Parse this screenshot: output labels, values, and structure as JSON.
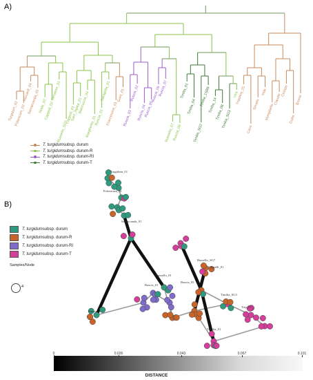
{
  "panels": {
    "a_label": "A)",
    "b_label": "B)"
  },
  "colors": {
    "durum": "#c98a5b",
    "durum_R": "#8bc34a",
    "durum_RI": "#9c5bc9",
    "durum_T": "#3c7a34",
    "node_durum": "#2f9a7d",
    "node_R": "#c8642a",
    "node_RI": "#7f6cc9",
    "node_T": "#d43f9a"
  },
  "legend_a": [
    {
      "italic": "T. turgidum",
      "rest": " subsp. durum"
    },
    {
      "italic": "T. turgidum",
      "rest": " subsp. durum-R"
    },
    {
      "italic": "T. turgidum",
      "rest": " subsp. durum-RI"
    },
    {
      "italic": "T. turgidum",
      "rest": " subsp. durum-T"
    }
  ],
  "legend_b": [
    {
      "italic": "T. turgidum",
      "rest": " subsp. durum"
    },
    {
      "italic": "T. turgidum",
      "rest": " subsp. durum-R"
    },
    {
      "italic": "T. turgidum",
      "rest": " subsp. durum-RI"
    },
    {
      "italic": "T. turgidum",
      "rest": " subsp. durum-T"
    }
  ],
  "samples": {
    "title": "Samples/Node",
    "value": "4"
  },
  "distance": {
    "title": "DISTANCE",
    "ticks": [
      "0",
      "0.026",
      "0.043",
      "0.067",
      "0.101"
    ]
  },
  "tree_leaves": [
    {
      "label": "Turgidum_02",
      "group": "durum"
    },
    {
      "label": "Polonicum_02",
      "group": "durum"
    },
    {
      "label": "Riccardi_04",
      "group": "durum"
    },
    {
      "label": "Samarcanda_01",
      "group": "durum"
    },
    {
      "label": "Nodo_02",
      "group": "durum_R"
    },
    {
      "label": "Cappelli_02",
      "group": "durum_R"
    },
    {
      "label": "Senatore_01",
      "group": "durum_R"
    },
    {
      "label": "Russello_SG7",
      "group": "durum_R"
    },
    {
      "label": "Cappelli_01",
      "group": "durum_R"
    },
    {
      "label": "Sant_Agata_01",
      "group": "durum_R"
    },
    {
      "label": "Biancuccia_03",
      "group": "durum_R"
    },
    {
      "label": "Margherito_01",
      "group": "durum_R"
    },
    {
      "label": "Ruscia_01",
      "group": "durum_R"
    },
    {
      "label": "Saragolla_01",
      "group": "durum_R"
    },
    {
      "label": "Francesone_01",
      "group": "durum"
    },
    {
      "label": "Duro_01",
      "group": "durum"
    },
    {
      "label": "Ruscia_03",
      "group": "durum_RI"
    },
    {
      "label": "Ruscia_02",
      "group": "durum_RI"
    },
    {
      "label": "Ruscia_04",
      "group": "durum_RI"
    },
    {
      "label": "Ruscia_05",
      "group": "durum_RI"
    },
    {
      "label": "Ruscia_06",
      "group": "durum_RI"
    },
    {
      "label": "Ruscia_07",
      "group": "durum_RI"
    },
    {
      "label": "Russello_07",
      "group": "durum_R"
    },
    {
      "label": "Ruscia_09",
      "group": "durum_R"
    },
    {
      "label": "Timilia_01",
      "group": "durum_T"
    },
    {
      "label": "Timilia_04",
      "group": "durum_T"
    },
    {
      "label": "Timilia_SG2",
      "group": "durum_T"
    },
    {
      "label": "Timilia_1SR8",
      "group": "durum_T"
    },
    {
      "label": "Timilia_14",
      "group": "durum_T"
    },
    {
      "label": "Timilia_08",
      "group": "durum_T"
    },
    {
      "label": "Timilia_SG3",
      "group": "durum_T"
    },
    {
      "label": "Vira",
      "group": "durum_R"
    },
    {
      "label": "Tripolino_01",
      "group": "durum"
    },
    {
      "label": "Coco",
      "group": "durum"
    },
    {
      "label": "Simeto",
      "group": "durum"
    },
    {
      "label": "Iride",
      "group": "durum"
    },
    {
      "label": "Mongibello",
      "group": "durum"
    },
    {
      "label": "Claudio",
      "group": "durum"
    },
    {
      "label": "Ciclope",
      "group": "durum"
    },
    {
      "label": "Duilio",
      "group": "durum"
    },
    {
      "label": "Bronte",
      "group": "durum"
    }
  ],
  "network_labels": [
    {
      "label": "Turgidum_01",
      "group": "durum"
    },
    {
      "label": "Polonicum_01",
      "group": "durum"
    },
    {
      "label": "Samarcanda_01",
      "group": "durum"
    },
    {
      "label": "Russello_01",
      "group": "durum_R"
    },
    {
      "label": "Ruscia_01",
      "group": "durum_RI"
    },
    {
      "label": "Ruscia_05",
      "group": "durum_RI"
    },
    {
      "label": "Russello_SG7",
      "group": "durum_R"
    },
    {
      "label": "Timilia_01",
      "group": "durum_T"
    },
    {
      "label": "Timilia_SG3",
      "group": "durum_T"
    },
    {
      "label": "Trip_01",
      "group": "durum"
    },
    {
      "label": "Simeto",
      "group": "durum"
    },
    {
      "label": "Cappelli_01",
      "group": "durum_R"
    }
  ]
}
